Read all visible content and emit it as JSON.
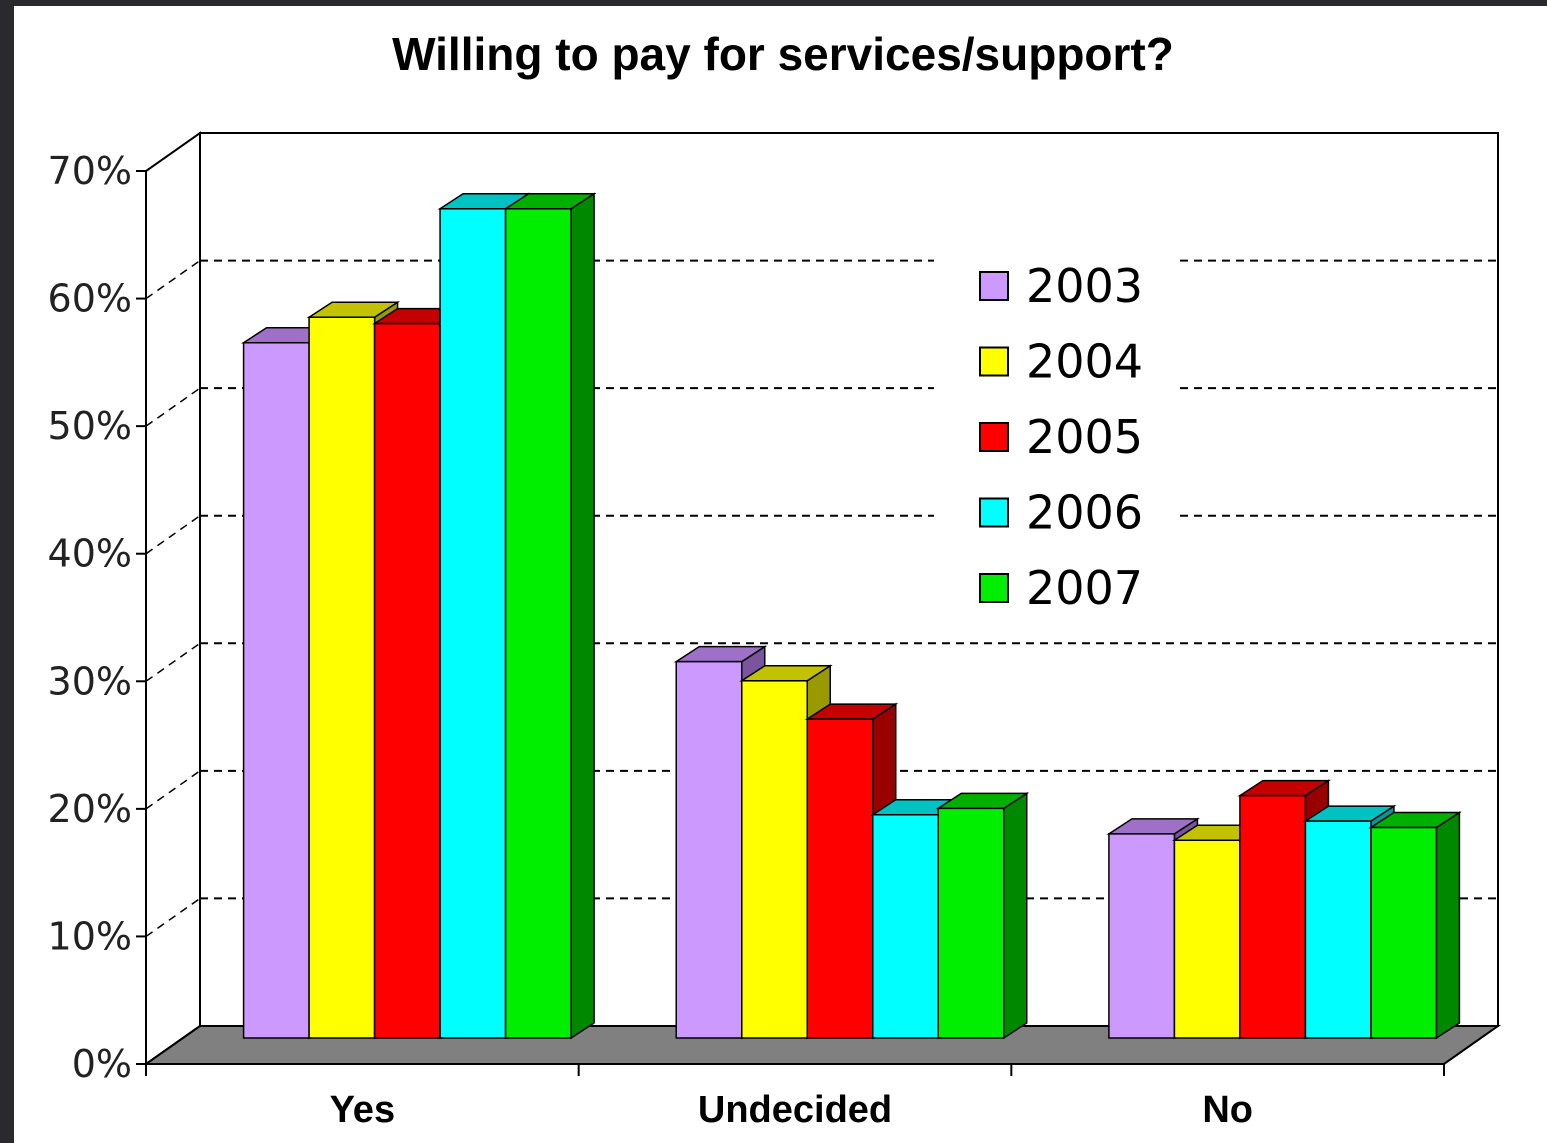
{
  "chart_data": {
    "type": "bar",
    "title": "Willing to pay for services/support?",
    "categories": [
      "Yes",
      "Undecided",
      "No"
    ],
    "series": [
      {
        "name": "2003",
        "values": [
          54.5,
          29.5,
          16
        ],
        "color": "#cc99ff",
        "top": "#9f70c7",
        "side": "#7a549c"
      },
      {
        "name": "2004",
        "values": [
          56.5,
          28,
          15.5
        ],
        "color": "#ffff00",
        "top": "#c2c200",
        "side": "#999900"
      },
      {
        "name": "2005",
        "values": [
          56,
          25,
          19
        ],
        "color": "#ff0000",
        "top": "#c40000",
        "side": "#990000"
      },
      {
        "name": "2006",
        "values": [
          65,
          17.5,
          17
        ],
        "color": "#00ffff",
        "top": "#00c2c2",
        "side": "#009999"
      },
      {
        "name": "2007",
        "values": [
          65,
          18,
          16.5
        ],
        "color": "#00ee00",
        "top": "#00b000",
        "side": "#008800"
      }
    ],
    "ylim": [
      0,
      70
    ],
    "yticks": [
      "0%",
      "10%",
      "20%",
      "30%",
      "40%",
      "50%",
      "60%",
      "70%"
    ],
    "grid": true,
    "legend": "inside-right"
  }
}
